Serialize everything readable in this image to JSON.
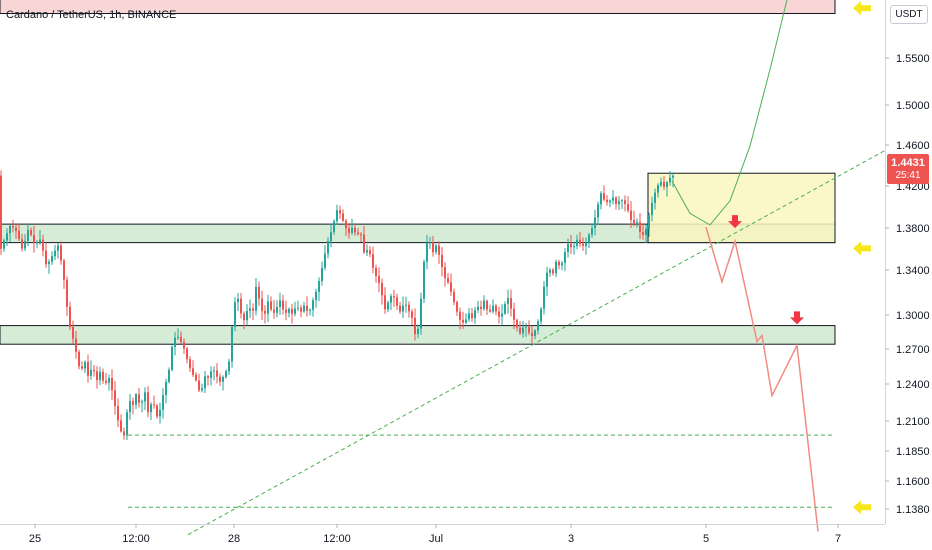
{
  "title": "Cardano / TetherUS, 1h, BINANCE",
  "currency": "USDT",
  "last_price": "1.4431",
  "countdown": "25:41",
  "chart_data": {
    "type": "candlestick",
    "x_ticks": [
      "25",
      "12:00",
      "28",
      "12:00",
      "Jul",
      "3",
      "5",
      "7"
    ],
    "y_ticks": [
      "1.5500",
      "1.5000",
      "1.4600",
      "1.4200",
      "1.3800",
      "1.3400",
      "1.3000",
      "1.2700",
      "1.2400",
      "1.2100",
      "1.1850",
      "1.1600",
      "1.1380"
    ],
    "ylim": [
      1.118,
      1.603
    ],
    "path": [
      [
        1.37,
        0
      ],
      [
        1.385,
        6
      ],
      [
        1.398,
        12
      ],
      [
        1.392,
        18
      ],
      [
        1.375,
        24
      ],
      [
        1.395,
        30
      ],
      [
        1.38,
        36
      ],
      [
        1.385,
        42
      ],
      [
        1.36,
        48
      ],
      [
        1.372,
        55
      ],
      [
        1.38,
        60
      ],
      [
        1.345,
        66
      ],
      [
        1.31,
        70
      ],
      [
        1.296,
        74
      ],
      [
        1.28,
        78
      ],
      [
        1.262,
        82
      ],
      [
        1.275,
        86
      ],
      [
        1.258,
        90
      ],
      [
        1.27,
        94
      ],
      [
        1.255,
        98
      ],
      [
        1.265,
        102
      ],
      [
        1.25,
        106
      ],
      [
        1.26,
        110
      ],
      [
        1.245,
        114
      ],
      [
        1.225,
        118
      ],
      [
        1.21,
        122
      ],
      [
        1.205,
        126
      ],
      [
        1.24,
        130
      ],
      [
        1.232,
        134
      ],
      [
        1.245,
        138
      ],
      [
        1.23,
        142
      ],
      [
        1.248,
        146
      ],
      [
        1.224,
        150
      ],
      [
        1.24,
        154
      ],
      [
        1.222,
        158
      ],
      [
        1.23,
        162
      ],
      [
        1.25,
        166
      ],
      [
        1.262,
        170
      ],
      [
        1.29,
        174
      ],
      [
        1.298,
        178
      ],
      [
        1.292,
        182
      ],
      [
        1.284,
        186
      ],
      [
        1.27,
        190
      ],
      [
        1.262,
        194
      ],
      [
        1.255,
        198
      ],
      [
        1.242,
        202
      ],
      [
        1.26,
        206
      ],
      [
        1.258,
        210
      ],
      [
        1.268,
        214
      ],
      [
        1.26,
        218
      ],
      [
        1.254,
        222
      ],
      [
        1.262,
        226
      ],
      [
        1.268,
        230
      ],
      [
        1.31,
        234
      ],
      [
        1.338,
        238
      ],
      [
        1.318,
        242
      ],
      [
        1.31,
        246
      ],
      [
        1.325,
        250
      ],
      [
        1.316,
        254
      ],
      [
        1.345,
        258
      ],
      [
        1.322,
        262
      ],
      [
        1.315,
        266
      ],
      [
        1.33,
        270
      ],
      [
        1.315,
        274
      ],
      [
        1.322,
        278
      ],
      [
        1.33,
        282
      ],
      [
        1.315,
        286
      ],
      [
        1.322,
        290
      ],
      [
        1.316,
        294
      ],
      [
        1.325,
        298
      ],
      [
        1.318,
        302
      ],
      [
        1.325,
        306
      ],
      [
        1.316,
        310
      ],
      [
        1.328,
        314
      ],
      [
        1.338,
        318
      ],
      [
        1.352,
        322
      ],
      [
        1.37,
        326
      ],
      [
        1.385,
        330
      ],
      [
        1.395,
        334
      ],
      [
        1.412,
        338
      ],
      [
        1.408,
        342
      ],
      [
        1.398,
        346
      ],
      [
        1.39,
        350
      ],
      [
        1.396,
        354
      ],
      [
        1.388,
        358
      ],
      [
        1.392,
        362
      ],
      [
        1.37,
        366
      ],
      [
        1.378,
        370
      ],
      [
        1.36,
        374
      ],
      [
        1.35,
        378
      ],
      [
        1.342,
        382
      ],
      [
        1.32,
        386
      ],
      [
        1.328,
        390
      ],
      [
        1.336,
        394
      ],
      [
        1.325,
        398
      ],
      [
        1.318,
        402
      ],
      [
        1.328,
        406
      ],
      [
        1.32,
        410
      ],
      [
        1.312,
        414
      ],
      [
        1.29,
        418
      ],
      [
        1.325,
        422
      ],
      [
        1.37,
        426
      ],
      [
        1.388,
        430
      ],
      [
        1.372,
        434
      ],
      [
        1.38,
        438
      ],
      [
        1.365,
        442
      ],
      [
        1.35,
        446
      ],
      [
        1.345,
        450
      ],
      [
        1.332,
        454
      ],
      [
        1.32,
        458
      ],
      [
        1.31,
        462
      ],
      [
        1.308,
        466
      ],
      [
        1.318,
        470
      ],
      [
        1.312,
        474
      ],
      [
        1.325,
        478
      ],
      [
        1.32,
        482
      ],
      [
        1.33,
        486
      ],
      [
        1.315,
        490
      ],
      [
        1.325,
        494
      ],
      [
        1.318,
        498
      ],
      [
        1.312,
        502
      ],
      [
        1.325,
        506
      ],
      [
        1.332,
        510
      ],
      [
        1.315,
        514
      ],
      [
        1.305,
        518
      ],
      [
        1.298,
        522
      ],
      [
        1.308,
        526
      ],
      [
        1.3,
        530
      ],
      [
        1.296,
        534
      ],
      [
        1.305,
        538
      ],
      [
        1.318,
        542
      ],
      [
        1.345,
        546
      ],
      [
        1.36,
        550
      ],
      [
        1.352,
        554
      ],
      [
        1.366,
        558
      ],
      [
        1.358,
        562
      ],
      [
        1.372,
        566
      ],
      [
        1.382,
        570
      ],
      [
        1.375,
        574
      ],
      [
        1.385,
        578
      ],
      [
        1.38,
        582
      ],
      [
        1.378,
        586
      ],
      [
        1.388,
        590
      ],
      [
        1.396,
        594
      ],
      [
        1.41,
        598
      ],
      [
        1.428,
        602
      ],
      [
        1.42,
        606
      ],
      [
        1.418,
        610
      ],
      [
        1.424,
        614
      ],
      [
        1.416,
        618
      ],
      [
        1.422,
        622
      ],
      [
        1.418,
        626
      ],
      [
        1.41,
        630
      ],
      [
        1.398,
        634
      ],
      [
        1.402,
        638
      ],
      [
        1.39,
        642
      ],
      [
        1.388,
        646
      ],
      [
        1.405,
        650
      ],
      [
        1.42,
        654
      ],
      [
        1.432,
        658
      ],
      [
        1.438,
        662
      ],
      [
        1.432,
        666
      ],
      [
        1.44,
        670
      ],
      [
        1.443,
        674
      ]
    ],
    "zones": [
      [
        1.3818,
        1.3987
      ],
      [
        1.289,
        1.306
      ],
      [
        1.5911,
        1.6048
      ]
    ],
    "yellow_box": {
      "x_from": 648,
      "x_to": 835,
      "y_from": 1.3818,
      "y_to": 1.4452
    },
    "hlines": [
      {
        "y": 1.206,
        "x_from": 128,
        "x_to": 835
      },
      {
        "y": 1.14,
        "x_from": 128,
        "x_to": 835
      }
    ],
    "trendline": [
      [
        188,
        1.115
      ],
      [
        885,
        1.466
      ]
    ],
    "projection_down": [
      [
        706,
        1.396
      ],
      [
        722,
        1.346
      ],
      [
        735,
        1.383
      ],
      [
        757,
        1.2915
      ],
      [
        762,
        1.297
      ],
      [
        772,
        1.242
      ],
      [
        797,
        1.288
      ],
      [
        818,
        1.118
      ]
    ],
    "projection_up": [
      [
        672,
        1.438
      ],
      [
        690,
        1.4085
      ],
      [
        710,
        1.398
      ],
      [
        730,
        1.42
      ],
      [
        750,
        1.47
      ],
      [
        770,
        1.54
      ],
      [
        790,
        1.615
      ]
    ],
    "red_arrows": [
      {
        "x": 735,
        "y": 1.396
      },
      {
        "x": 797,
        "y": 1.308
      }
    ],
    "yellow_arrows": [
      1.596,
      1.3765,
      1.14
    ],
    "colors": {
      "up": "#26a69a",
      "down": "#ef5350",
      "zone": "#d6ecd6",
      "box": "#f9f6bf",
      "trend": "#4caf50",
      "projection": "#f28b82",
      "arrow_red": "#f23645",
      "arrow_yellow": "#f6e71c"
    }
  }
}
